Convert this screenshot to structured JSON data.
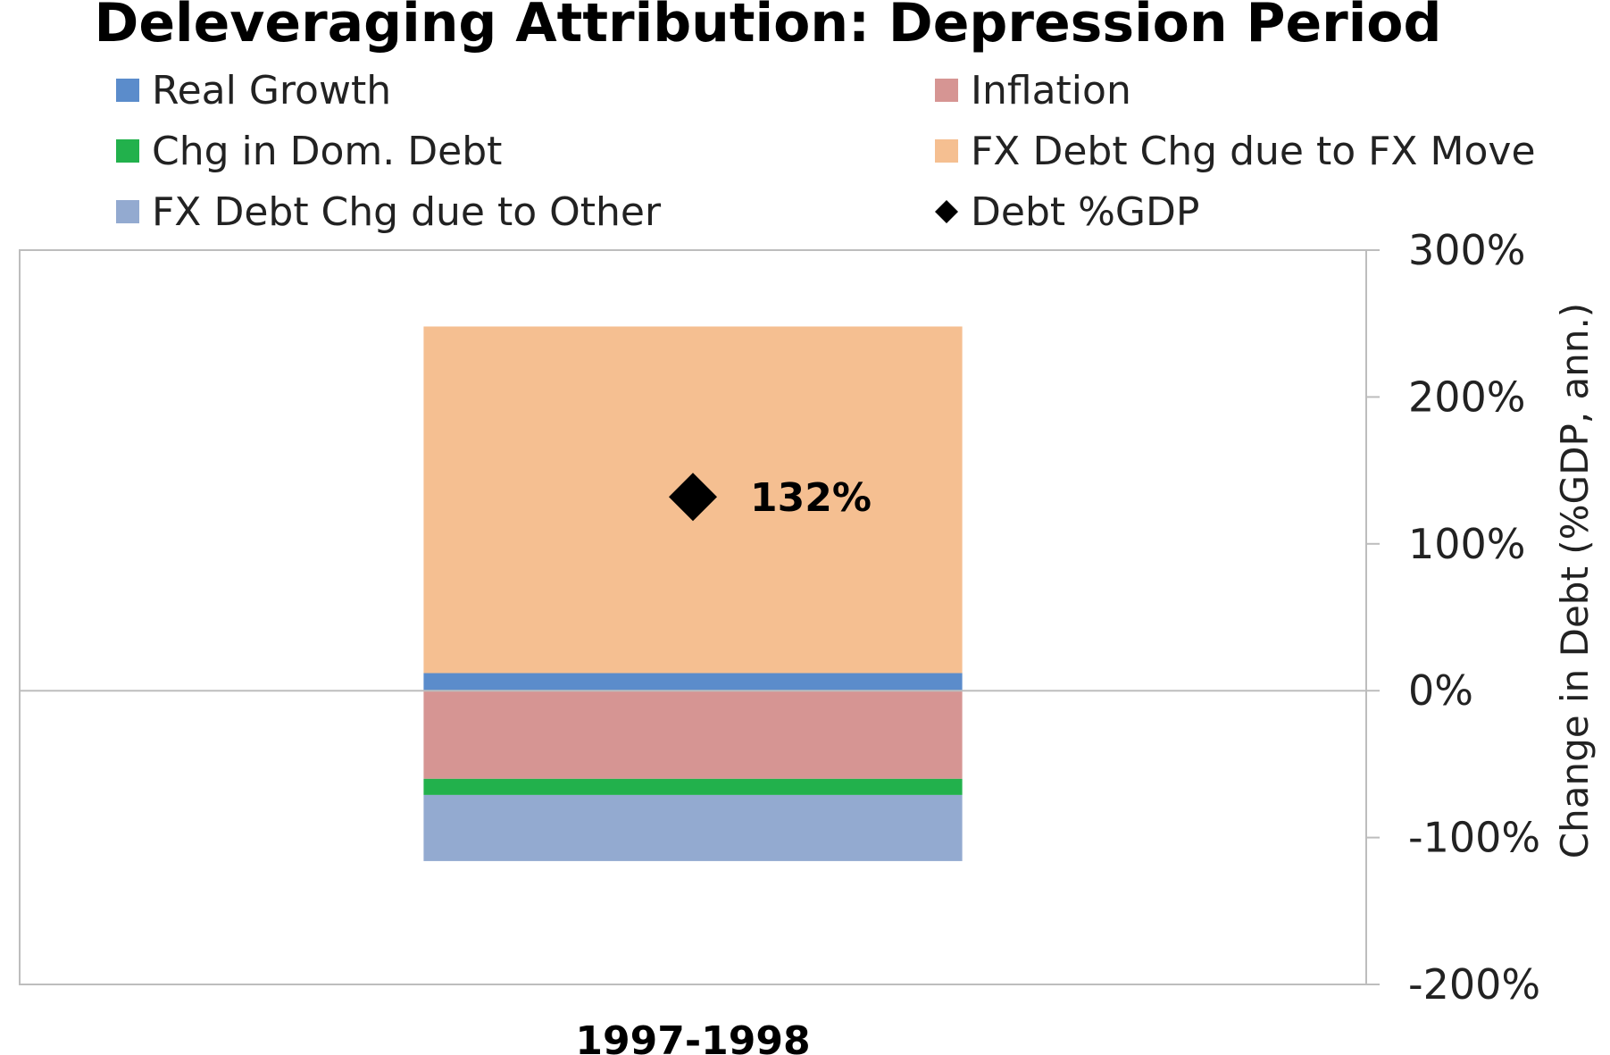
{
  "chart_data": {
    "type": "bar",
    "stacked": true,
    "title": "Deleveraging Attribution: Depression Period",
    "categories": [
      "1997-1998"
    ],
    "ylabel": "Change in Debt (%GDP, ann.)",
    "ylim": [
      -200,
      300
    ],
    "yticks": [
      300,
      200,
      100,
      0,
      -100,
      -200
    ],
    "ytick_labels": [
      "300%",
      "200%",
      "100%",
      "0%",
      "-100%",
      "-200%"
    ],
    "y_axis_position": "right",
    "grid": false,
    "legend_position": "top",
    "series": [
      {
        "name": "Real Growth",
        "color": "#5b8ccb",
        "values": [
          12
        ]
      },
      {
        "name": "Inflation",
        "color": "#d69593",
        "values": [
          -60
        ]
      },
      {
        "name": "Chg in Dom. Debt",
        "color": "#22b14c",
        "values": [
          -11
        ]
      },
      {
        "name": "FX Debt Chg due to FX Move",
        "color": "#f5bf91",
        "values": [
          236
        ]
      },
      {
        "name": "FX Debt Chg due to Other",
        "color": "#93aad0",
        "values": [
          -45
        ]
      }
    ],
    "markers": [
      {
        "name": "Debt %GDP",
        "shape": "diamond",
        "color": "#000000",
        "values": [
          132
        ],
        "labels": [
          "132%"
        ]
      }
    ],
    "legend": [
      {
        "label": "Real Growth",
        "color": "#5b8ccb",
        "shape": "square"
      },
      {
        "label": "Inflation",
        "color": "#d69593",
        "shape": "square"
      },
      {
        "label": "Chg in Dom. Debt",
        "color": "#22b14c",
        "shape": "square"
      },
      {
        "label": "FX Debt Chg due to FX Move",
        "color": "#f5bf91",
        "shape": "square"
      },
      {
        "label": "FX Debt Chg due to Other",
        "color": "#93aad0",
        "shape": "square"
      },
      {
        "label": "Debt %GDP",
        "color": "#000000",
        "shape": "diamond"
      }
    ]
  }
}
